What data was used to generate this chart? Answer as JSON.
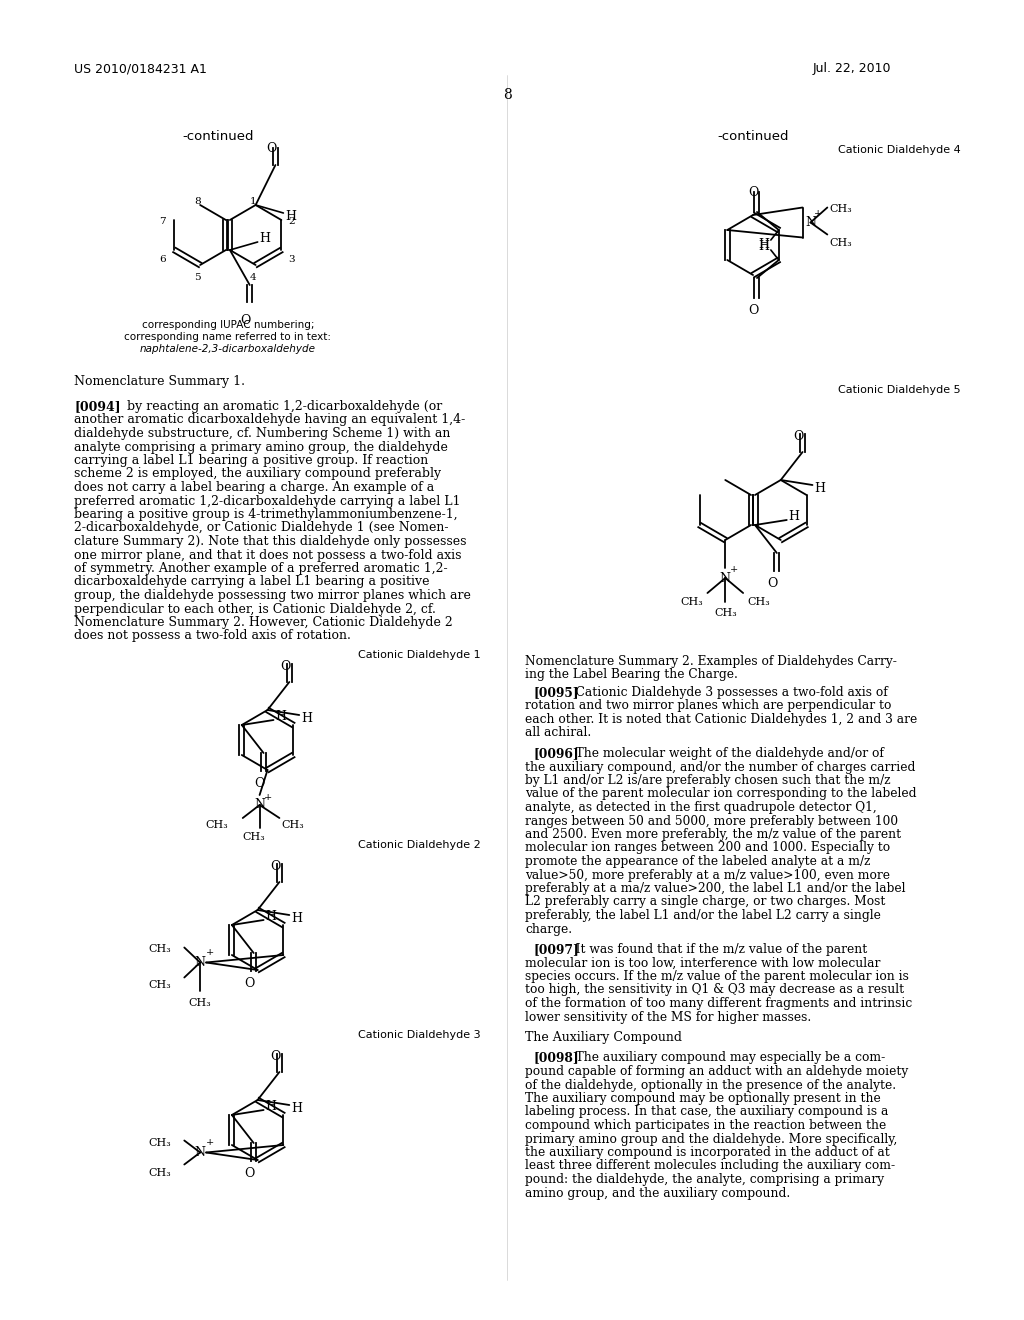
{
  "page_header_left": "US 2010/184231 A1",
  "page_header_right": "Jul. 22, 2010",
  "page_number": "8",
  "background_color": "#ffffff",
  "text_color": "#000000"
}
